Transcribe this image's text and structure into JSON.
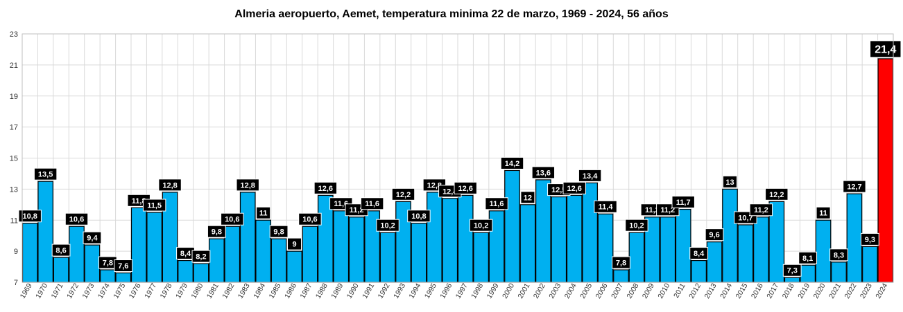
{
  "chart_data": {
    "type": "bar",
    "title": "Almeria aeropuerto, Aemet, temperatura minima 22 de marzo, 1969 - 2024, 56 años",
    "xlabel": "",
    "ylabel": "",
    "ylim": [
      7,
      23
    ],
    "yticks": [
      7,
      9,
      11,
      13,
      15,
      17,
      19,
      21,
      23
    ],
    "grid": true,
    "legend": "none",
    "bar_color": "#00b0f0",
    "highlight_color": "#ff0000",
    "highlight_category": "2024",
    "categories": [
      "1969",
      "1970",
      "1971",
      "1972",
      "1973",
      "1974",
      "1975",
      "1976",
      "1977",
      "1978",
      "1979",
      "1980",
      "1981",
      "1982",
      "1983",
      "1984",
      "1985",
      "1986",
      "1987",
      "1988",
      "1989",
      "1990",
      "1991",
      "1992",
      "1993",
      "1994",
      "1995",
      "1996",
      "1997",
      "1998",
      "1999",
      "2000",
      "2001",
      "2002",
      "2003",
      "2004",
      "2005",
      "2006",
      "2007",
      "2008",
      "2009",
      "2010",
      "2011",
      "2012",
      "2013",
      "2014",
      "2015",
      "2016",
      "2017",
      "2018",
      "2019",
      "2020",
      "2021",
      "2022",
      "2023",
      "2024"
    ],
    "values": [
      10.8,
      13.5,
      8.6,
      10.6,
      9.4,
      7.8,
      7.6,
      11.8,
      11.5,
      12.8,
      8.4,
      8.2,
      9.8,
      10.6,
      12.8,
      11,
      9.8,
      9,
      10.6,
      12.6,
      11.6,
      11.2,
      11.6,
      10.2,
      12.2,
      10.8,
      12.8,
      12.4,
      12.6,
      10.2,
      11.6,
      14.2,
      12,
      13.6,
      12.5,
      12.6,
      13.4,
      11.4,
      7.8,
      10.2,
      11.2,
      11.2,
      11.7,
      8.4,
      9.6,
      13,
      10.7,
      11.2,
      12.2,
      7.3,
      8.1,
      11,
      8.3,
      12.7,
      9.3,
      21.4
    ],
    "labels": [
      "10,8",
      "13,5",
      "8,6",
      "10,6",
      "9,4",
      "7,8",
      "7,6",
      "11,8",
      "11,5",
      "12,8",
      "8,4",
      "8,2",
      "9,8",
      "10,6",
      "12,8",
      "11",
      "9,8",
      "9",
      "10,6",
      "12,6",
      "11,6",
      "11,2",
      "11,6",
      "10,2",
      "12,2",
      "10,8",
      "12,8",
      "12,4",
      "12,6",
      "10,2",
      "11,6",
      "14,2",
      "12",
      "13,6",
      "12,5",
      "12,6",
      "13,4",
      "11,4",
      "7,8",
      "10,2",
      "11,2",
      "11,2",
      "11,7",
      "8,4",
      "9,6",
      "13",
      "10,7",
      "11,2",
      "12,2",
      "7,3",
      "8,1",
      "11",
      "8,3",
      "12,7",
      "9,3",
      "21,4"
    ]
  }
}
